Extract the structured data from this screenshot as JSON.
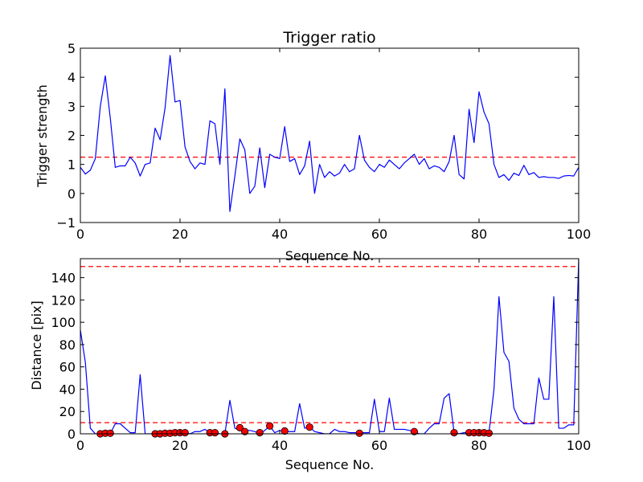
{
  "chart_data": [
    {
      "type": "line",
      "title": "Trigger ratio",
      "xlabel": "Sequence No.",
      "ylabel": "Trigger strength",
      "xlim": [
        0,
        100
      ],
      "ylim": [
        -1,
        5
      ],
      "xticks": [
        "0",
        "20",
        "40",
        "60",
        "80",
        "100"
      ],
      "yticks": [
        "−1",
        "0",
        "1",
        "2",
        "3",
        "4",
        "5"
      ],
      "grid": false,
      "series": [
        {
          "color": "#0000ff",
          "x": [
            0,
            1,
            2,
            3,
            4,
            5,
            6,
            7,
            8,
            9,
            10,
            11,
            12,
            13,
            14,
            15,
            16,
            17,
            18,
            19,
            20,
            21,
            22,
            23,
            24,
            25,
            26,
            27,
            28,
            29,
            30,
            31,
            32,
            33,
            34,
            35,
            36,
            37,
            38,
            39,
            40,
            41,
            42,
            43,
            44,
            45,
            46,
            47,
            48,
            49,
            50,
            51,
            52,
            53,
            54,
            55,
            56,
            57,
            58,
            59,
            60,
            61,
            62,
            63,
            64,
            65,
            66,
            67,
            68,
            69,
            70,
            71,
            72,
            73,
            74,
            75,
            76,
            77,
            78,
            79,
            80,
            81,
            82,
            83,
            84,
            85,
            86,
            87,
            88,
            89,
            90,
            91,
            92,
            93,
            94,
            95,
            96,
            97,
            98,
            99,
            100
          ],
          "y": [
            0.9,
            0.67,
            0.8,
            1.2,
            3.0,
            4.05,
            2.6,
            0.9,
            0.95,
            0.95,
            1.25,
            1.05,
            0.6,
            1.0,
            1.05,
            2.25,
            1.85,
            2.95,
            4.75,
            3.15,
            3.2,
            1.6,
            1.1,
            0.85,
            1.05,
            1.0,
            2.5,
            2.4,
            1.0,
            3.6,
            -0.62,
            0.6,
            1.88,
            1.5,
            0.0,
            0.25,
            1.57,
            0.2,
            1.35,
            1.25,
            1.2,
            2.3,
            1.1,
            1.2,
            0.65,
            0.95,
            1.8,
            0.0,
            1.0,
            0.55,
            0.75,
            0.6,
            0.7,
            1.0,
            0.75,
            0.85,
            2.0,
            1.15,
            0.9,
            0.75,
            1.0,
            0.9,
            1.15,
            1.0,
            0.85,
            1.05,
            1.2,
            1.35,
            1.0,
            1.2,
            0.85,
            0.95,
            0.9,
            0.75,
            1.1,
            2.0,
            0.65,
            0.5,
            2.9,
            1.75,
            3.5,
            2.8,
            2.4,
            1.0,
            0.55,
            0.65,
            0.45,
            0.7,
            0.62,
            0.97,
            0.65,
            0.72,
            0.55,
            0.58,
            0.55,
            0.55,
            0.52,
            0.6,
            0.62,
            0.6,
            0.9
          ]
        }
      ],
      "hlines": [
        {
          "y": 1.25,
          "color": "#ff0000",
          "style": "dashed"
        }
      ]
    },
    {
      "type": "line",
      "title": "",
      "xlabel": "Sequence No.",
      "ylabel": "Distance [pix]",
      "xlim": [
        0,
        100
      ],
      "ylim": [
        0,
        157
      ],
      "xticks": [
        "0",
        "20",
        "40",
        "60",
        "80",
        "100"
      ],
      "yticks": [
        "0",
        "20",
        "40",
        "60",
        "80",
        "100",
        "120",
        "140"
      ],
      "grid": false,
      "series": [
        {
          "color": "#0000ff",
          "x": [
            0,
            1,
            2,
            3,
            4,
            5,
            6,
            7,
            8,
            9,
            10,
            11,
            12,
            13,
            14,
            15,
            16,
            17,
            18,
            19,
            20,
            21,
            22,
            23,
            24,
            25,
            26,
            27,
            28,
            29,
            30,
            31,
            32,
            33,
            34,
            35,
            36,
            37,
            38,
            39,
            40,
            41,
            42,
            43,
            44,
            45,
            46,
            47,
            48,
            49,
            50,
            51,
            52,
            53,
            54,
            55,
            56,
            57,
            58,
            59,
            60,
            61,
            62,
            63,
            64,
            65,
            66,
            67,
            68,
            69,
            70,
            71,
            72,
            73,
            74,
            75,
            76,
            77,
            78,
            79,
            80,
            81,
            82,
            83,
            84,
            85,
            86,
            87,
            88,
            89,
            90,
            91,
            92,
            93,
            94,
            95,
            96,
            97,
            98,
            99,
            100
          ],
          "y": [
            93,
            64,
            5,
            0,
            0,
            1,
            0,
            9,
            9,
            5,
            1,
            1,
            53,
            0,
            0,
            0,
            0,
            0,
            0,
            0,
            2,
            1,
            0,
            2,
            2,
            4,
            1,
            1,
            0,
            0,
            30,
            5,
            3,
            3,
            3,
            2,
            0,
            3,
            7,
            1,
            3,
            2,
            2,
            2,
            27,
            5,
            6,
            2,
            1,
            0,
            0,
            4,
            2,
            2,
            1,
            1,
            1,
            1,
            1,
            31,
            2,
            2,
            32,
            4,
            4,
            4,
            3,
            2,
            0,
            0,
            5,
            9,
            9,
            32,
            36,
            1,
            0,
            1,
            1,
            2,
            1,
            1,
            1,
            40,
            123,
            73,
            65,
            23,
            13,
            9,
            9,
            9,
            50,
            31,
            31,
            123,
            5,
            5,
            8,
            8,
            157
          ]
        }
      ],
      "markers": {
        "color": "#ff0000",
        "x": [
          4,
          5,
          6,
          15,
          16,
          17,
          18,
          19,
          20,
          21,
          26,
          27,
          29,
          32,
          33,
          36,
          38,
          41,
          46,
          56,
          67,
          75,
          78,
          79,
          80,
          81,
          82
        ],
        "y": [
          0,
          0.5,
          0.5,
          0,
          0,
          0.5,
          0.5,
          1,
          1,
          1,
          1,
          1,
          0,
          5.5,
          2,
          1,
          7,
          2.5,
          6,
          0.5,
          2,
          1,
          1,
          1,
          1,
          1,
          0.5
        ]
      },
      "hlines": [
        {
          "y": 150,
          "color": "#ff0000",
          "style": "dashed"
        },
        {
          "y": 10,
          "color": "#ff0000",
          "style": "dashed"
        }
      ]
    }
  ]
}
